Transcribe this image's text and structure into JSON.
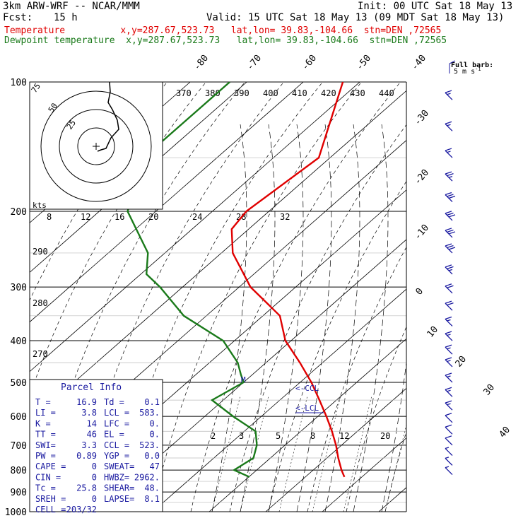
{
  "header": {
    "model": "3km ARW-WRF -- NCAR/MMM",
    "init": "Init: 00 UTC Sat 18 May 13",
    "fcst_label": "Fcst:",
    "fcst_value": "15 h",
    "valid": "Valid: 15 UTC Sat 18 May 13 (09 MDT Sat 18 May 13)",
    "line_temp": "Temperature          x,y=287.67,523.73   lat,lon= 39.83,-104.66  stn=DEN ,72565",
    "line_dew": "Dewpoint temperature  x,y=287.67,523.73   lat,lon= 39.83,-104.66  stn=DEN ,72565"
  },
  "colors": {
    "temperature": "#e00000",
    "dewpoint": "#1a7a1a",
    "wind_barb": "#1a1aa0"
  },
  "parcel_info": {
    "title": "Parcel Info",
    "rows": [
      [
        "T  =",
        "16.9",
        "Td  =",
        "0.1"
      ],
      [
        "LI =",
        "3.8",
        "LCL =",
        "583."
      ],
      [
        "K  =",
        "14",
        "LFC =",
        "0."
      ],
      [
        "TT =",
        "46",
        "EL  =",
        "0."
      ],
      [
        "SWI=",
        "3.3",
        "CCL =",
        "523."
      ],
      [
        "PW =",
        "0.89",
        "YGP =",
        "0.0"
      ],
      [
        "CAPE =",
        "0",
        "SWEAT=",
        "47"
      ],
      [
        "CIN  =",
        "0",
        "HWBZ=",
        "2962."
      ],
      [
        "Tc =",
        "25.8",
        "SHEAR=",
        "48."
      ],
      [
        "SREH =",
        "0",
        "LAPSE=",
        "8.1"
      ],
      [
        "CELL =",
        "203/32",
        "",
        ""
      ]
    ]
  },
  "hodograph": {
    "ring_labels": [
      "75",
      "50",
      "25"
    ],
    "kts_label": "kts"
  },
  "wind_legend": {
    "line1": "Full barb:",
    "line2": "5 m s",
    "exponent": "-1"
  },
  "chart_data": {
    "type": "line",
    "title": "",
    "pressure_levels": [
      100,
      200,
      300,
      400,
      500,
      600,
      700,
      800,
      900,
      1000
    ],
    "temperature_ticks": [
      -80,
      -70,
      -60,
      -50,
      -40,
      -30,
      -20,
      -10,
      0,
      10,
      20,
      30,
      40
    ],
    "theta_e_labels": [
      370,
      380,
      390,
      400,
      410,
      420,
      430,
      440
    ],
    "theta_e_top_labels": [
      8,
      12,
      16,
      20,
      24,
      28,
      32
    ],
    "mixing_ratio_labels": [
      2,
      3,
      5,
      8,
      12,
      20
    ],
    "dry_adiabat_labels": [
      290,
      280,
      270
    ],
    "annotations": {
      "ccl": "CCL",
      "lcl": "LCL",
      "m": "M"
    },
    "series": [
      {
        "name": "Temperature",
        "pressure": [
          100,
          150,
          200,
          220,
          250,
          300,
          350,
          400,
          450,
          500,
          550,
          600,
          650,
          700,
          750,
          800,
          830
        ],
        "temperature": [
          -63,
          -52,
          -54,
          -53,
          -48,
          -38,
          -27,
          -21,
          -14,
          -8,
          -3,
          1.5,
          5.5,
          9,
          12,
          15,
          16.9
        ]
      },
      {
        "name": "Dewpoint temperature",
        "pressure": [
          100,
          150,
          200,
          250,
          280,
          300,
          350,
          400,
          450,
          480,
          500,
          550,
          600,
          650,
          700,
          750,
          800,
          830
        ],
        "temperature": [
          -83,
          -83,
          -75,
          -63,
          -59,
          -54,
          -44,
          -32,
          -25,
          -22,
          -20,
          -22,
          -15,
          -8,
          -5,
          -3,
          -4,
          0.1
        ]
      }
    ],
    "wind_barbs": [
      {
        "p": 110,
        "barbs": 1.5
      },
      {
        "p": 130,
        "barbs": 1.5
      },
      {
        "p": 150,
        "barbs": 1.5
      },
      {
        "p": 170,
        "barbs": 2.5
      },
      {
        "p": 190,
        "barbs": 3
      },
      {
        "p": 210,
        "barbs": 3
      },
      {
        "p": 230,
        "barbs": 3
      },
      {
        "p": 250,
        "barbs": 3
      },
      {
        "p": 280,
        "barbs": 2.5
      },
      {
        "p": 310,
        "barbs": 2
      },
      {
        "p": 340,
        "barbs": 2
      },
      {
        "p": 370,
        "barbs": 1.5
      },
      {
        "p": 400,
        "barbs": 1.5
      },
      {
        "p": 430,
        "barbs": 1.5
      },
      {
        "p": 460,
        "barbs": 1.5
      },
      {
        "p": 500,
        "barbs": 1.5
      },
      {
        "p": 540,
        "barbs": 1.5
      },
      {
        "p": 580,
        "barbs": 1.5
      },
      {
        "p": 620,
        "barbs": 1
      },
      {
        "p": 660,
        "barbs": 1
      },
      {
        "p": 700,
        "barbs": 1
      },
      {
        "p": 740,
        "barbs": 0.5
      },
      {
        "p": 780,
        "barbs": 0.5
      },
      {
        "p": 820,
        "barbs": 0.5
      }
    ]
  }
}
